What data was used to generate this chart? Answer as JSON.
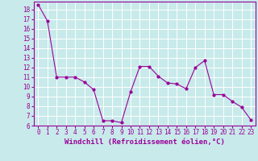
{
  "x": [
    0,
    1,
    2,
    3,
    4,
    5,
    6,
    7,
    8,
    9,
    10,
    11,
    12,
    13,
    14,
    15,
    16,
    17,
    18,
    19,
    20,
    21,
    22,
    23
  ],
  "y": [
    18.5,
    16.8,
    11.0,
    11.0,
    11.0,
    10.5,
    9.7,
    6.5,
    6.5,
    6.3,
    9.5,
    12.1,
    12.1,
    11.1,
    10.4,
    10.3,
    9.8,
    12.0,
    12.7,
    9.2,
    9.2,
    8.5,
    7.9,
    6.6
  ],
  "line_color": "#990099",
  "marker": ".",
  "marker_size": 4,
  "bg_color": "#c8eaea",
  "grid_color": "#aadddd",
  "xlabel": "Windchill (Refroidissement éolien,°C)",
  "xlim": [
    -0.5,
    23.5
  ],
  "ylim": [
    6,
    18.8
  ],
  "yticks": [
    6,
    7,
    8,
    9,
    10,
    11,
    12,
    13,
    14,
    15,
    16,
    17,
    18
  ],
  "xticks": [
    0,
    1,
    2,
    3,
    4,
    5,
    6,
    7,
    8,
    9,
    10,
    11,
    12,
    13,
    14,
    15,
    16,
    17,
    18,
    19,
    20,
    21,
    22,
    23
  ],
  "tick_label_color": "#990099",
  "xlabel_color": "#990099",
  "axis_color": "#990099",
  "tick_fontsize": 5.5,
  "xlabel_fontsize": 6.5
}
